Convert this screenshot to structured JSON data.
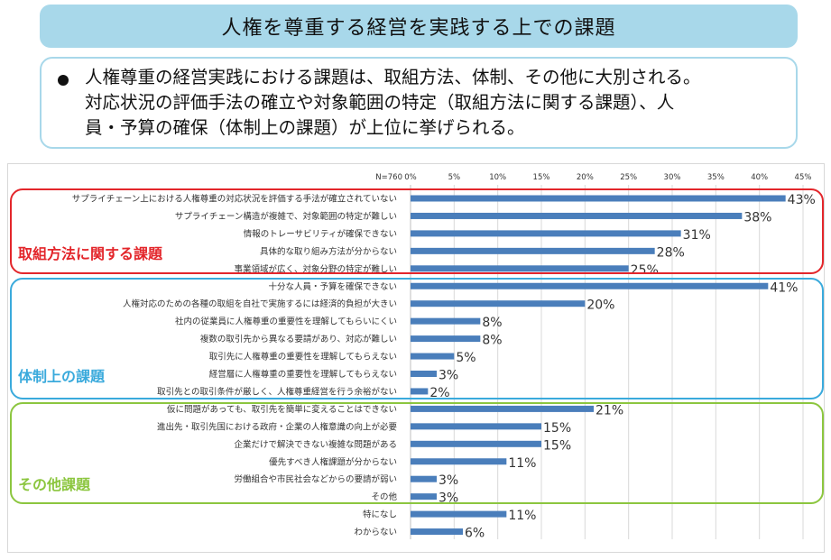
{
  "title": "人権を尊重する経営を実践する上での課題",
  "summary_lines": [
    "人権尊重の経営実践における課題は、取組方法、体制、その他に大別される。",
    "対応状況の評価手法の確立や対象範囲の特定（取組方法に関する課題）、人",
    "員・予算の確保（体制上の課題）が上位に挙げられる。"
  ],
  "colors": {
    "title_bg": "#a8d8ea",
    "bar": "#4a7ebb",
    "group_method": "#e3262b",
    "group_structure": "#3aaadc",
    "group_other": "#8cc63f"
  },
  "groups": {
    "method": "取組方法に関する課題",
    "structure": "体制上の課題",
    "other": "その他課題"
  },
  "chart_data": {
    "type": "bar",
    "orientation": "horizontal",
    "n_label": "N=760",
    "xlim": [
      0,
      45
    ],
    "x_ticks": [
      "0%",
      "5%",
      "10%",
      "15%",
      "20%",
      "25%",
      "30%",
      "35%",
      "40%",
      "45%"
    ],
    "grid": true,
    "categories": [
      "サプライチェーン上における人権尊重の対応状況を評価する手法が確立されていない",
      "サプライチェーン構造が複雑で、対象範囲の特定が難しい",
      "情報のトレーサビリティが確保できない",
      "具体的な取り組み方法が分からない",
      "事業領域が広く、対象分野の特定が難しい",
      "十分な人員・予算を確保できない",
      "人権対応のための各種の取組を自社で実施するには経済的負担が大きい",
      "社内の従業員に人権尊重の重要性を理解してもらいにくい",
      "複数の取引先から異なる要請があり、対応が難しい",
      "取引先に人権尊重の重要性を理解してもらえない",
      "経営層に人権尊重の重要性を理解してもらえない",
      "取引先との取引条件が厳しく、人権尊重経営を行う余裕がない",
      "仮に問題があっても、取引先を簡単に変えることはできない",
      "進出先・取引先国における政府・企業の人権意識の向上が必要",
      "企業だけで解決できない複雑な問題がある",
      "優先すべき人権課題が分からない",
      "労働組合や市民社会などからの要請が弱い",
      "その他",
      "特になし",
      "わからない"
    ],
    "values": [
      43,
      38,
      31,
      28,
      25,
      41,
      20,
      8,
      8,
      5,
      3,
      2,
      21,
      15,
      15,
      11,
      3,
      3,
      11,
      6
    ],
    "value_labels": [
      "43%",
      "38%",
      "31%",
      "28%",
      "25%",
      "41%",
      "20%",
      "8%",
      "8%",
      "5%",
      "3%",
      "2%",
      "21%",
      "15%",
      "15%",
      "11%",
      "3%",
      "3%",
      "11%",
      "6%"
    ]
  }
}
